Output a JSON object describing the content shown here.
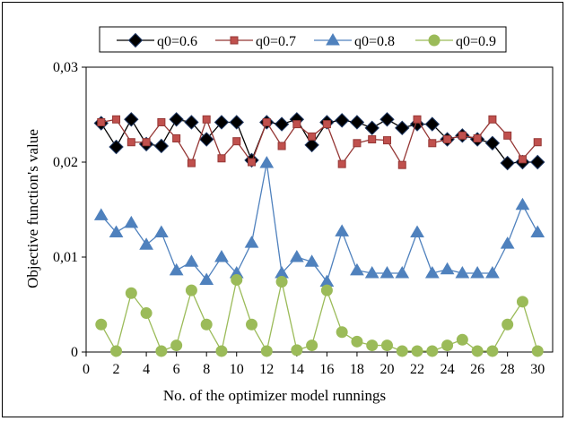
{
  "chart_data": {
    "type": "line",
    "title": "",
    "xlabel": "No. of the optimizer model runnings",
    "ylabel": "Objective function's value",
    "xlim": [
      0,
      31
    ],
    "ylim": [
      0,
      0.03
    ],
    "x_ticks": [
      0,
      2,
      4,
      6,
      8,
      10,
      12,
      14,
      16,
      18,
      20,
      22,
      24,
      26,
      28,
      30
    ],
    "x_tick_labels": [
      "0",
      "2",
      "4",
      "6",
      "8",
      "10",
      "12",
      "14",
      "16",
      "18",
      "20",
      "22",
      "24",
      "26",
      "28",
      "30"
    ],
    "y_ticks": [
      0,
      0.01,
      0.02,
      0.03
    ],
    "y_tick_labels": [
      "0",
      "0,01",
      "0,02",
      "0,03"
    ],
    "grid": false,
    "legend_position": "top",
    "x": [
      1,
      2,
      3,
      4,
      5,
      6,
      7,
      8,
      9,
      10,
      11,
      12,
      13,
      14,
      15,
      16,
      17,
      18,
      19,
      20,
      21,
      22,
      23,
      24,
      25,
      26,
      27,
      28,
      29,
      30
    ],
    "series": [
      {
        "name": "q0=0.6",
        "color": "#000000",
        "fill": "#000000",
        "marker": "diamond",
        "values": [
          0.0241,
          0.0216,
          0.0245,
          0.0219,
          0.0217,
          0.0245,
          0.0242,
          0.0224,
          0.0242,
          0.0242,
          0.0202,
          0.0242,
          0.024,
          0.0245,
          0.0218,
          0.0242,
          0.0244,
          0.0242,
          0.0236,
          0.0245,
          0.0236,
          0.024,
          0.024,
          0.0224,
          0.0228,
          0.0224,
          0.022,
          0.0199,
          0.02,
          0.02
        ]
      },
      {
        "name": "q0=0.7",
        "color": "#953735",
        "fill": "#c0504d",
        "marker": "square",
        "values": [
          0.0242,
          0.0245,
          0.0221,
          0.0221,
          0.0242,
          0.0225,
          0.0199,
          0.0245,
          0.0204,
          0.0222,
          0.02,
          0.0242,
          0.0217,
          0.024,
          0.0227,
          0.024,
          0.0198,
          0.022,
          0.0224,
          0.0223,
          0.0197,
          0.0245,
          0.022,
          0.0224,
          0.0228,
          0.0225,
          0.0245,
          0.0228,
          0.0203,
          0.0221
        ]
      },
      {
        "name": "q0=0.8",
        "color": "#4f81bd",
        "fill": "#4f81bd",
        "marker": "triangle",
        "values": [
          0.0144,
          0.0126,
          0.0136,
          0.0113,
          0.0126,
          0.0086,
          0.0095,
          0.0076,
          0.01,
          0.0083,
          0.0115,
          0.0199,
          0.0083,
          0.01,
          0.0095,
          0.0074,
          0.0127,
          0.0086,
          0.0083,
          0.0083,
          0.0083,
          0.0126,
          0.0083,
          0.0087,
          0.0083,
          0.0083,
          0.0083,
          0.0114,
          0.0155,
          0.0126
        ]
      },
      {
        "name": "q0=0.9",
        "color": "#9bbb59",
        "fill": "#9bbb59",
        "marker": "circle",
        "values": [
          0.0029,
          0.0001,
          0.0062,
          0.0041,
          0.0001,
          0.0007,
          0.0065,
          0.0029,
          0.0001,
          0.0076,
          0.0029,
          0.0001,
          0.0074,
          0.0002,
          0.0007,
          0.0065,
          0.0021,
          0.0011,
          0.0007,
          0.0007,
          0.0001,
          0.0001,
          0.0001,
          0.0007,
          0.0013,
          0.0001,
          0.0001,
          0.0029,
          0.0053,
          0.0001
        ]
      }
    ]
  }
}
